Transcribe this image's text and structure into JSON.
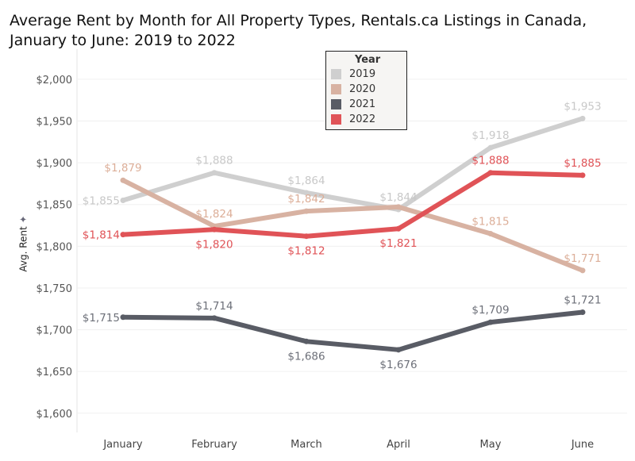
{
  "title": "Average Rent by Month for All Property Types, Rentals.ca Listings in Canada, January to June: 2019 to 2022",
  "chart_data": {
    "type": "line",
    "title": "Average Rent by Month for All Property Types, Rentals.ca Listings in Canada, January to June: 2019 to 2022",
    "xlabel": "",
    "ylabel": "Avg. Rent",
    "categories": [
      "January",
      "February",
      "March",
      "April",
      "May",
      "June"
    ],
    "yticks": [
      "$1,600",
      "$1,650",
      "$1,700",
      "$1,750",
      "$1,800",
      "$1,850",
      "$1,900",
      "$1,950",
      "$2,000"
    ],
    "ytick_values": [
      1600,
      1650,
      1700,
      1750,
      1800,
      1850,
      1900,
      1950,
      2000
    ],
    "ylim": [
      1577,
      2036
    ],
    "grid": "horizontal",
    "legend_title": "Year",
    "legend_placement": "top-center",
    "series": [
      {
        "name": "2019",
        "color": "#cfcfcf",
        "label_color": "#c8c8c8",
        "values": [
          1855,
          1888,
          1864,
          1844,
          1918,
          1953
        ],
        "labels": [
          "$1,855",
          "$1,888",
          "$1,864",
          "$1,844",
          "$1,918",
          "$1,953"
        ]
      },
      {
        "name": "2020",
        "color": "#d8b2a2",
        "label_color": "#dcae98",
        "values": [
          1879,
          1824,
          1842,
          1847,
          1815,
          1771
        ],
        "labels": [
          "$1,879",
          "$1,824",
          "$1,842",
          "",
          "$1,815",
          "$1,771"
        ]
      },
      {
        "name": "2021",
        "color": "#595c65",
        "label_color": "#6d7079",
        "values": [
          1715,
          1714,
          1686,
          1676,
          1709,
          1721
        ],
        "labels": [
          "$1,715",
          "$1,714",
          "$1,686",
          "$1,676",
          "$1,709",
          "$1,721"
        ]
      },
      {
        "name": "2022",
        "color": "#e05357",
        "label_color": "#e05357",
        "values": [
          1814,
          1820,
          1812,
          1821,
          1888,
          1885
        ],
        "labels": [
          "$1,814",
          "$1,820",
          "$1,812",
          "$1,821",
          "$1,888",
          "$1,885"
        ]
      }
    ]
  }
}
